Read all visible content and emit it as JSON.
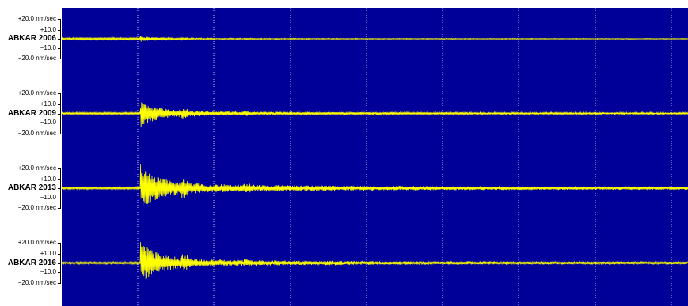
{
  "window": {
    "background": "#ffffff",
    "plot_background": "#000099",
    "trace_color": "#ffff00",
    "grid_color": "#ffffff"
  },
  "scale_labels": {
    "top": "+20.0 nm/sec",
    "upper": "+10.0",
    "lower": "−10.0",
    "bottom": "−20.0 nm/sec"
  },
  "traces": [
    {
      "station": "ABKAR 2006",
      "amplitude": 0.12
    },
    {
      "station": "ABKAR 2009",
      "amplitude": 0.55
    },
    {
      "station": "ABKAR 2013",
      "amplitude": 1.0
    },
    {
      "station": "ABKAR 2016",
      "amplitude": 0.85
    }
  ]
}
